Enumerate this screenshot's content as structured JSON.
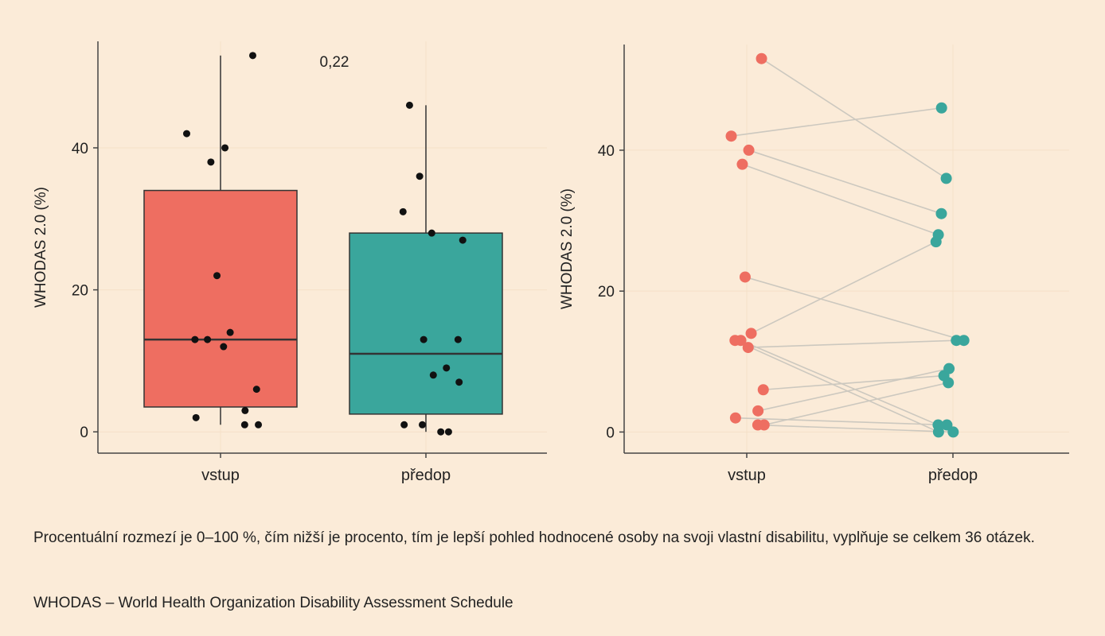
{
  "colors": {
    "background": "#fbebd8",
    "panel_gridline": "#f5e0c8",
    "vstup": "#ee6e61",
    "predop": "#3aa69c",
    "points": "#111111",
    "pair_lines": "#ccc8bf",
    "axis": "#444444"
  },
  "chart_data": [
    {
      "type": "box",
      "title": "",
      "xlabel": "",
      "ylabel": "WHODAS 2.0 (%)",
      "ylim": [
        -3,
        55
      ],
      "yticks": [
        0,
        20,
        40
      ],
      "categories": [
        "vstup",
        "předop"
      ],
      "annotation": "0,22",
      "boxes": [
        {
          "category": "vstup",
          "whisker_low": 1,
          "q1": 3.5,
          "median": 13,
          "q3": 34,
          "whisker_high": 53
        },
        {
          "category": "předop",
          "whisker_low": 0,
          "q1": 2.5,
          "median": 11,
          "q3": 28,
          "whisker_high": 46
        }
      ],
      "points": {
        "vstup": [
          53,
          42,
          40,
          38,
          22,
          14,
          13,
          13,
          12,
          6,
          3,
          2,
          1,
          1
        ],
        "předop": [
          46,
          36,
          31,
          28,
          27,
          13,
          13,
          9,
          8,
          7,
          1,
          1,
          0,
          0
        ]
      }
    },
    {
      "type": "paired-dot",
      "title": "",
      "xlabel": "",
      "ylabel": "WHODAS 2.0 (%)",
      "ylim": [
        -3,
        55
      ],
      "yticks": [
        0,
        20,
        40
      ],
      "categories": [
        "vstup",
        "předop"
      ],
      "pairs": [
        {
          "vstup": 53,
          "předop": 36
        },
        {
          "vstup": 42,
          "předop": 46
        },
        {
          "vstup": 40,
          "předop": 31
        },
        {
          "vstup": 38,
          "předop": 28
        },
        {
          "vstup": 22,
          "předop": 13
        },
        {
          "vstup": 14,
          "předop": 27
        },
        {
          "vstup": 13,
          "předop": 0
        },
        {
          "vstup": 13,
          "předop": 1
        },
        {
          "vstup": 12,
          "předop": 13
        },
        {
          "vstup": 6,
          "předop": 8
        },
        {
          "vstup": 3,
          "předop": 9
        },
        {
          "vstup": 2,
          "předop": 1
        },
        {
          "vstup": 1,
          "předop": 7
        },
        {
          "vstup": 1,
          "předop": 0
        }
      ]
    }
  ],
  "caption": {
    "note": "Procentuální rozmezí je 0–100 %, čím nižší je procento, tím je lepší pohled hodnocené osoby na svoji vlastní disabilitu, vyplňuje se celkem 36 otázek.",
    "abbreviation": "WHODAS – World Health Organization Disability Assessment Schedule"
  }
}
